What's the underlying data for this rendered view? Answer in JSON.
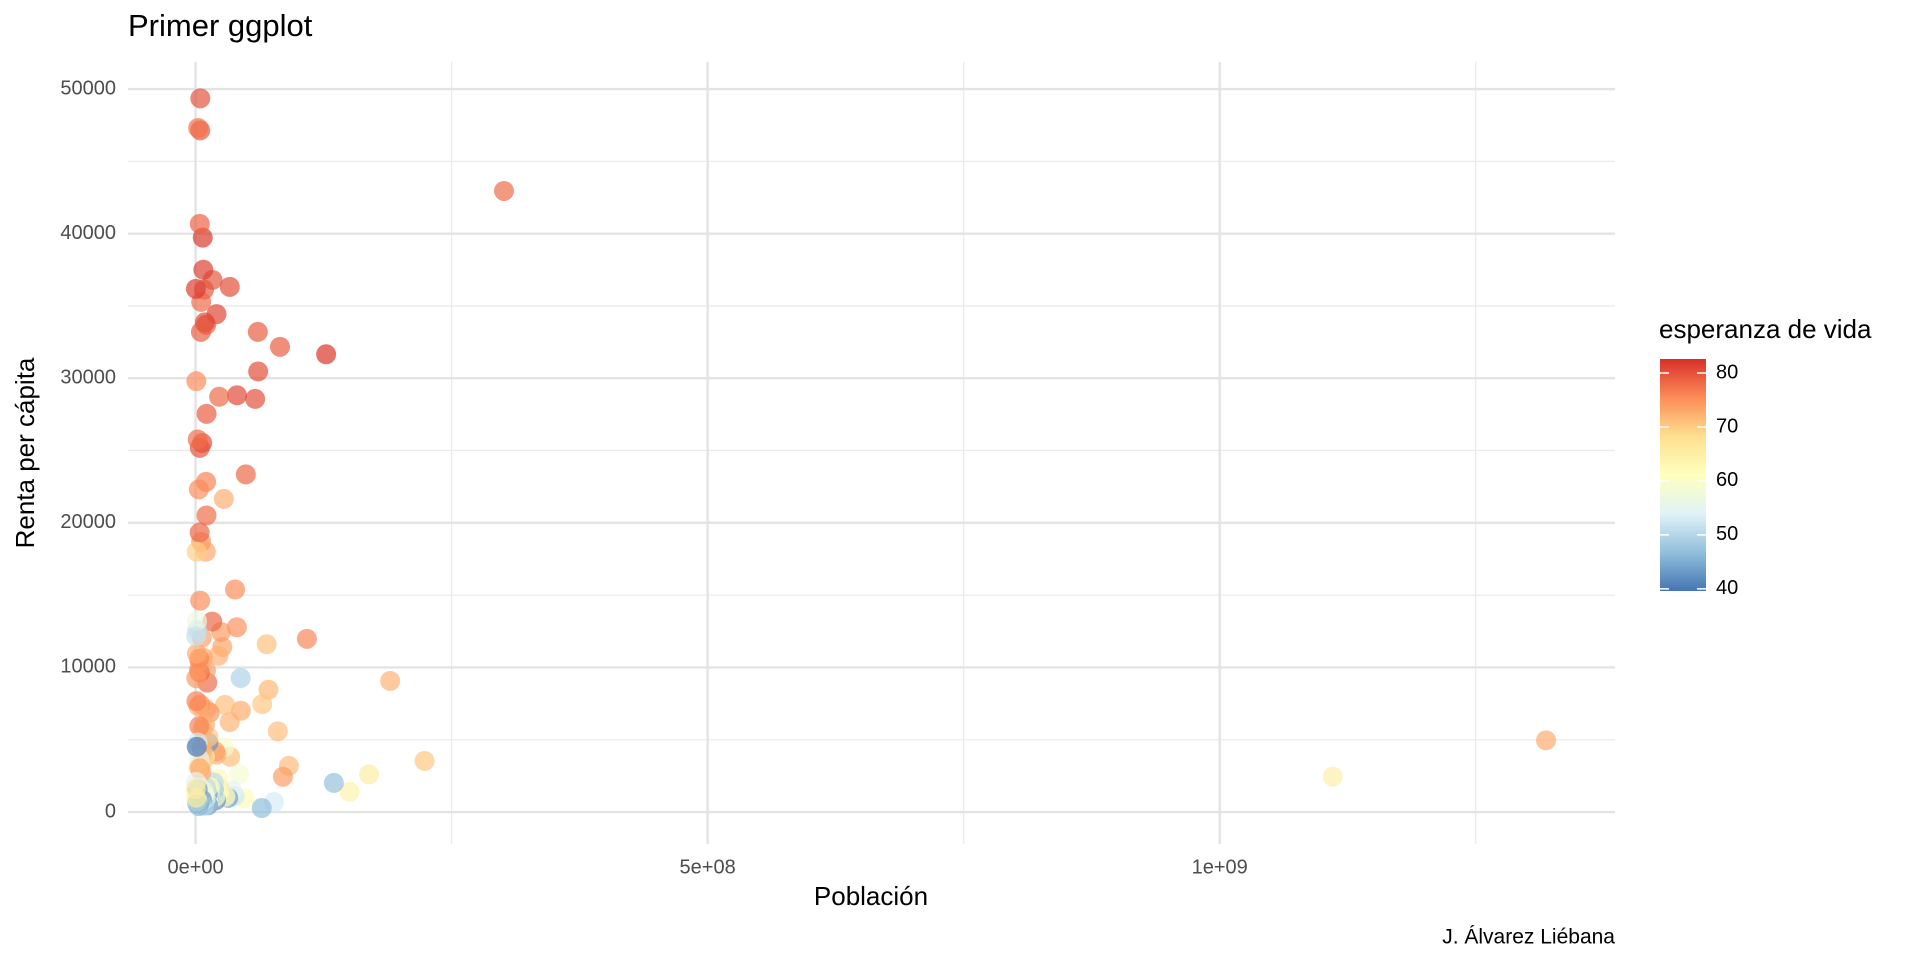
{
  "chart_data": {
    "type": "scatter",
    "title": "Primer ggplot",
    "x_label": "Población",
    "y_label": "Renta per cápita",
    "caption": "J. Álvarez Liébana",
    "color_label": "esperanza de vida",
    "x": [
      1318683096,
      1110396331,
      301139947,
      223547000,
      190010647,
      169270617,
      150448339,
      135031164,
      127467972,
      108700891,
      91077287,
      85262356,
      82400996,
      80264543,
      76511887,
      71158647,
      69453570,
      65068149,
      64606759,
      61083916,
      60776238,
      58147733,
      43997828,
      49044790,
      47761980,
      44227550,
      40448191,
      40301927,
      42292929,
      38139640,
      38518241,
      35610177,
      33757175,
      33390141,
      33333216,
      31889923,
      29170398,
      28674757,
      26084662,
      27499638,
      28901790,
      24821286,
      27601038,
      23301725,
      22997696,
      22873338,
      22211743,
      19951656,
      22276056,
      20434176,
      20378239,
      19314747,
      19167654,
      18013409,
      17696293,
      16284741,
      16570613,
      12420476,
      14326203,
      13755680,
      13327079,
      14131858,
      12894865,
      12572928,
      12031795,
      12311143,
      11746035,
      12267493,
      11416987,
      10706290,
      10392226,
      10642836,
      10228744,
      10276158,
      10238807,
      9956108,
      9031088,
      9119152,
      9118773,
      9319622,
      8860588,
      9947814,
      8502814,
      8390505,
      8078314,
      8199783,
      7554661,
      10150265,
      7322858,
      7483763,
      6980412,
      6426679,
      6036914,
      6939688,
      6667147,
      6053193,
      5701579,
      5675356,
      6144562,
      4906585,
      5468120,
      5447502,
      5238460,
      4627926,
      4553009,
      4109086,
      4493312,
      4369038,
      4133884,
      4115771,
      3921278,
      4552198,
      3800610,
      3942491,
      3447496,
      3193942,
      3242173,
      3270065,
      3600523,
      2874127,
      3204897,
      2780132,
      2505559,
      4018332,
      2012649,
      2055080,
      2009245,
      1639131,
      1688359,
      1454867,
      1472041,
      1056608,
      1250882,
      708573,
      1133066,
      684736,
      710960,
      496374,
      551201,
      301931,
      199579,
      798094
    ],
    "y": [
      4959,
      2452,
      42951,
      3541,
      9066,
      2606,
      1391,
      2014,
      31656,
      11978,
      3190,
      2442,
      32170,
      5581,
      691,
      8458,
      11606,
      7458,
      278,
      30470,
      33203,
      28570,
      9270,
      23348,
      944,
      7007,
      28821,
      12779,
      2602,
      1107,
      15390,
      1463,
      3820,
      36319,
      6223,
      975,
      1056,
      7409,
      11416,
      4471,
      1091,
      12452,
      21655,
      1593,
      28718,
      1328,
      2281,
      824,
      10808,
      34435,
      3970,
      4185,
      1044,
      1545,
      2042,
      13172,
      36798,
      4797,
      1217,
      6873,
      759,
      1714,
      619,
      5186,
      1043,
      470,
      1271,
      1712,
      8948,
      27538,
      33693,
      20510,
      22833,
      7093,
      1704,
      18009,
      33860,
      3822,
      926,
      6025,
      863,
      943,
      1202,
      430,
      1441,
      36126,
      37506,
      9787,
      10681,
      3548,
      39725,
      25523,
      12057,
      5728,
      4173,
      4519,
      883,
      2749,
      863,
      641,
      35278,
      18678,
      33207,
      49357,
      47143,
      40676,
      14619,
      706,
      9645,
      25185,
      10461,
      7446,
      3633,
      19329,
      10611,
      415,
      9809,
      1803,
      5937,
      3096,
      22316,
      7321,
      47307,
      3025,
      1569,
      4811,
      25768,
      12570,
      753,
      13206,
      579,
      18009,
      10957,
      29796,
      4513,
      9254,
      986,
      2082,
      12154,
      36181,
      1598,
      7670
    ],
    "color_values": [
      73,
      64.7,
      78.2,
      70.6,
      72.4,
      65.5,
      64.1,
      46.9,
      82.6,
      76.2,
      71.7,
      74.2,
      79.4,
      71.3,
      52.9,
      71.8,
      71,
      70.6,
      46.5,
      80.7,
      79.4,
      80.5,
      49.3,
      78.6,
      62,
      72.9,
      80.9,
      75.3,
      58.6,
      52.5,
      75.6,
      54.1,
      71.2,
      80.7,
      72.3,
      43.8,
      51.5,
      71.4,
      73.7,
      59.5,
      63.8,
      74.2,
      72.8,
      67.3,
      78.4,
      60,
      62.7,
      42.1,
      72.5,
      81.2,
      72.4,
      74.1,
      59.4,
      48.3,
      50.4,
      78.6,
      79.8,
      42.7,
      52.3,
      75,
      48.3,
      59.7,
      56.9,
      70.3,
      54.5,
      43.5,
      42.4,
      63.1,
      78.3,
      79.5,
      79.4,
      78.1,
      76.5,
      73.9,
      50.7,
      73.3,
      80.9,
      65.6,
      48.2,
      72.2,
      46.2,
      56,
      60.9,
      49.6,
      56.7,
      79.8,
      81.7,
      74,
      73,
      70.2,
      82.2,
      80.7,
      74,
      71.9,
      71.8,
      72.5,
      58.4,
      72.9,
      42.6,
      58,
      78.3,
      74.7,
      79.3,
      80.2,
      80,
      78.9,
      75.7,
      44.7,
      78.8,
      80.2,
      72,
      74.9,
      55.3,
      78.7,
      76.4,
      45.7,
      75.5,
      64.2,
      76.4,
      66.8,
      75.6,
      72.6,
      77.6,
      73.4,
      42.6,
      52.9,
      77.9,
      50.7,
      59.4,
      56.7,
      46.4,
      69.8,
      72.8,
      75.6,
      39.6,
      74.5,
      65.2,
      54.8,
      51.6,
      81.8,
      65.5,
      76.4
    ],
    "color_lim": [
      39.6,
      82.6
    ],
    "color_ticks": [
      40,
      50,
      60,
      70,
      80
    ],
    "palette": [
      "#4575b4",
      "#91bfdb",
      "#e0f3f8",
      "#ffffbf",
      "#fee090",
      "#fc8d59",
      "#d73027"
    ],
    "xlim": [
      -66000000,
      1386000000
    ],
    "xticks": [
      {
        "value": 0,
        "label": "0e+00"
      },
      {
        "value": 500000000,
        "label": "5e+08"
      },
      {
        "value": 1000000000,
        "label": "1e+09"
      }
    ],
    "minor_xticks": [
      250000000,
      750000000,
      1250000000
    ],
    "ylim": [
      -2211,
      51870
    ],
    "yticks": [
      0,
      10000,
      20000,
      30000,
      40000,
      50000
    ],
    "minor_yticks": [
      5000,
      15000,
      25000,
      35000,
      45000
    ],
    "grid": true
  }
}
